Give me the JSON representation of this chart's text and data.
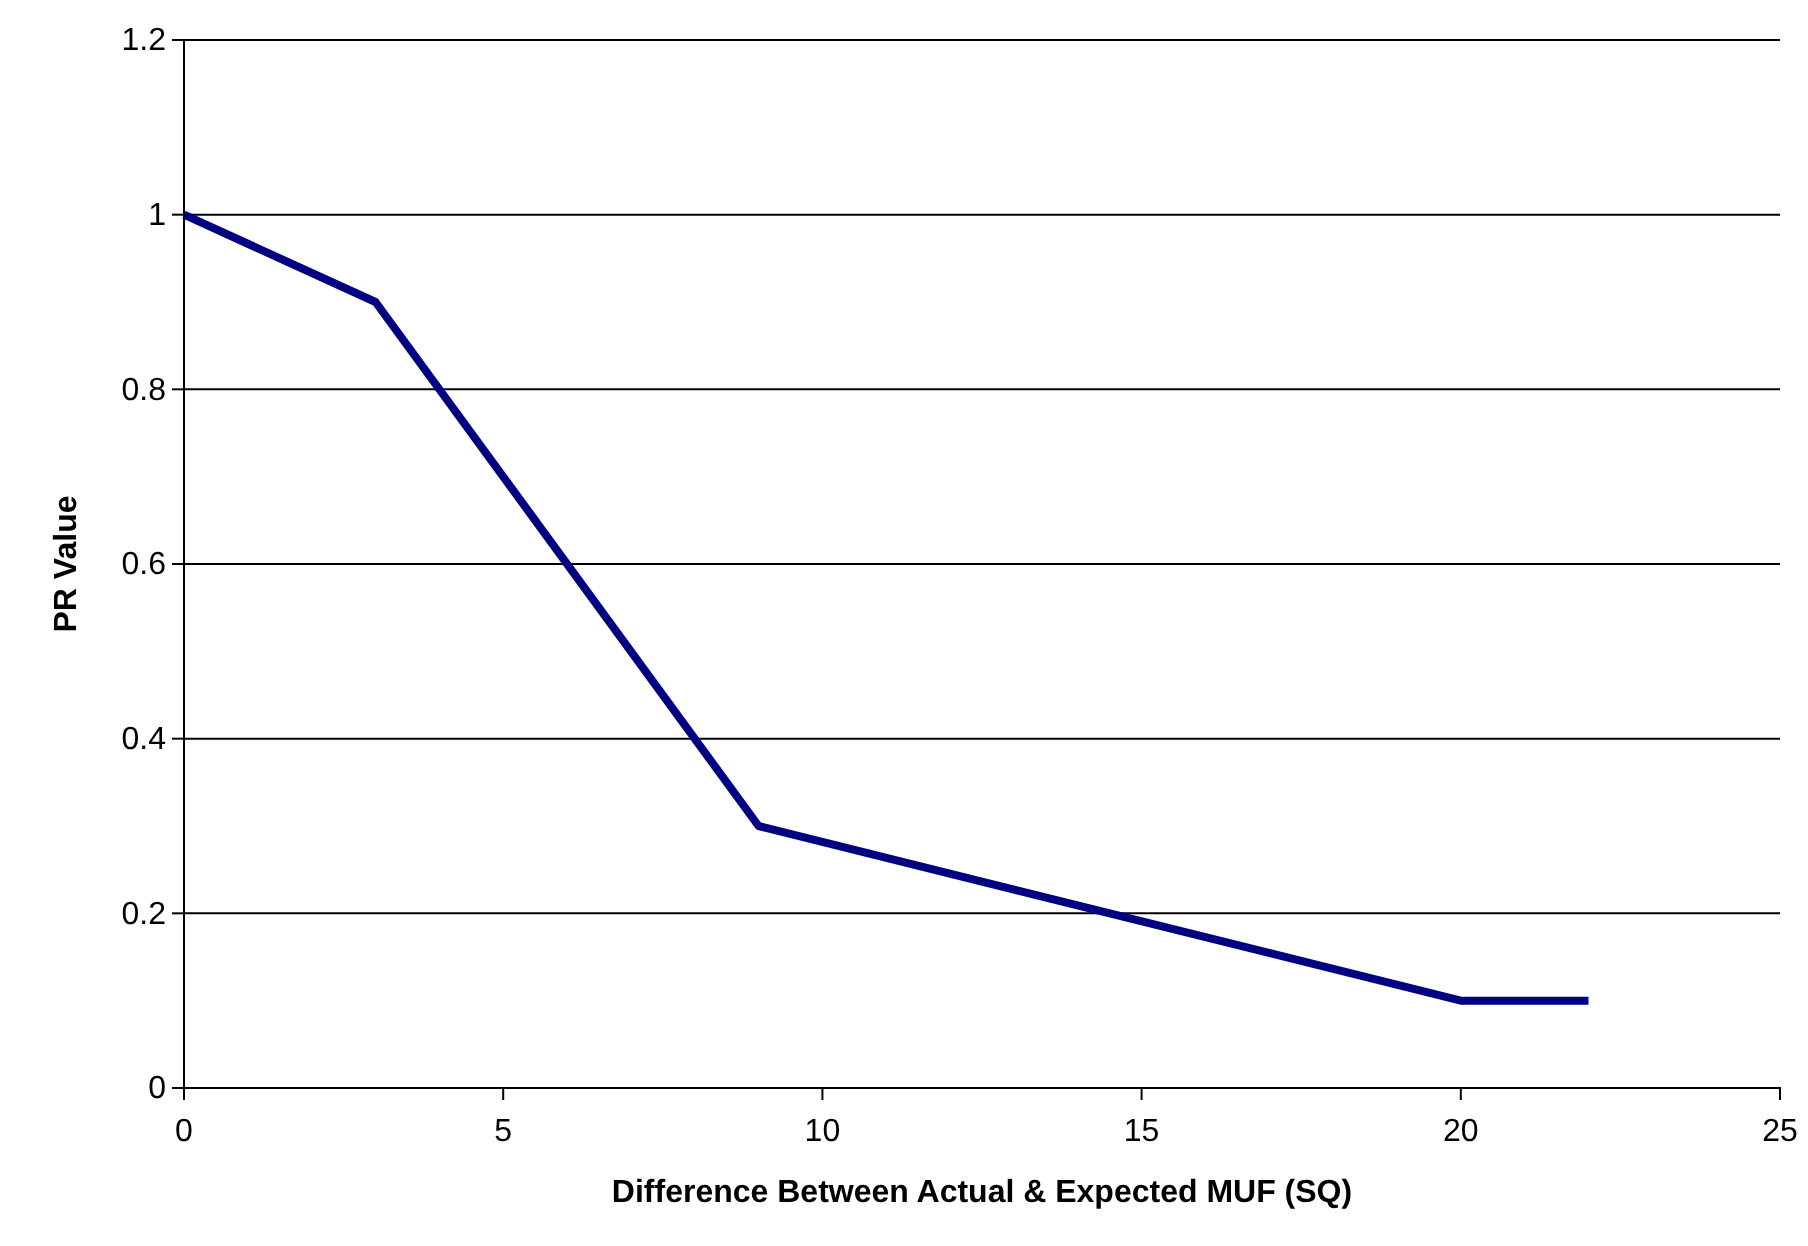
{
  "chart_data": {
    "type": "line",
    "xlabel": "Difference Between Actual & Expected MUF (SQ)",
    "ylabel": "PR Value",
    "x": [
      0,
      3,
      9,
      20,
      22
    ],
    "series": [
      {
        "color": "#000080",
        "values": [
          1,
          0.9,
          0.3,
          0.1,
          0.1
        ]
      }
    ],
    "xlim": [
      0,
      25
    ],
    "xticks": [
      0,
      5,
      10,
      15,
      20,
      25
    ],
    "ylim": [
      0,
      1.2
    ],
    "yticks": [
      0,
      0.2,
      0.4,
      0.6,
      0.8,
      1,
      1.2
    ],
    "grid": "y",
    "marker": "none",
    "line_style": "solid"
  }
}
